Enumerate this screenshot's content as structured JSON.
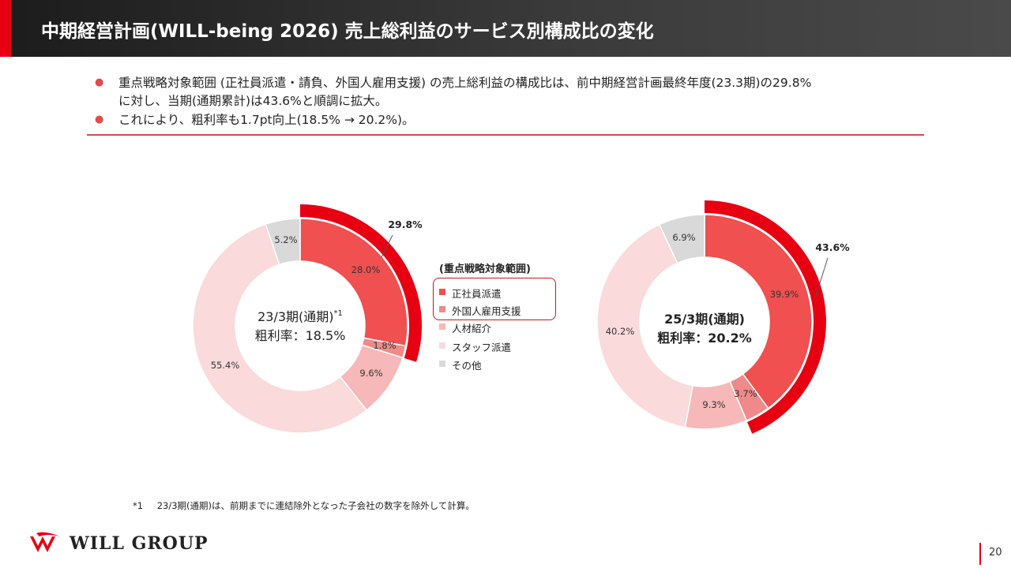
{
  "header": {
    "title": "中期経営計画(WILL-being 2026) 売上総利益のサービス別構成比の変化"
  },
  "bullets": [
    {
      "line1": "重点戦略対象範囲 (正社員派遣・請負、外国人雇用支援) の売上総利益の構成比は、前中期経営計画最終年度(23.3期)の29.8%",
      "line2": "に対し、当期(通期累計)は43.6%と順調に拡大。"
    },
    {
      "line1": "これにより、粗利率も1.7pt向上(18.5% → 20.2%)。"
    }
  ],
  "legend": {
    "title": "(重点戦略対象範囲)",
    "items": [
      {
        "label": "正社員派遣",
        "color": "#f05050"
      },
      {
        "label": "外国人雇用支援",
        "color": "#f08a8a"
      },
      {
        "label": "人材紹介",
        "color": "#f6b8b8"
      },
      {
        "label": "スタッフ派遣",
        "color": "#fadada"
      },
      {
        "label": "その他",
        "color": "#d9d9d9"
      }
    ]
  },
  "chart_data": [
    {
      "type": "pie",
      "donut": true,
      "center_label_line1": "23/3期(通期)",
      "center_label_sup": "*1",
      "center_label_line2": "粗利率：18.5%",
      "slices": [
        {
          "name": "正社員派遣",
          "value": 28.0,
          "label": "28.0%",
          "color": "#f05050"
        },
        {
          "name": "外国人雇用支援",
          "value": 1.8,
          "label": "1.8%",
          "color": "#f08a8a"
        },
        {
          "name": "人材紹介",
          "value": 9.6,
          "label": "9.6%",
          "color": "#f6b8b8"
        },
        {
          "name": "スタッフ派遣",
          "value": 55.4,
          "label": "55.4%",
          "color": "#fadada"
        },
        {
          "name": "その他",
          "value": 5.2,
          "label": "5.2%",
          "color": "#d9d9d9"
        }
      ],
      "highlight": {
        "value": 29.8,
        "label": "29.8%",
        "color": "#e60012"
      }
    },
    {
      "type": "pie",
      "donut": true,
      "center_label_line1": "25/3期(通期)",
      "center_label_line2": "粗利率：20.2%",
      "slices": [
        {
          "name": "正社員派遣",
          "value": 39.9,
          "label": "39.9%",
          "color": "#f05050"
        },
        {
          "name": "外国人雇用支援",
          "value": 3.7,
          "label": "3.7%",
          "color": "#f08a8a"
        },
        {
          "name": "人材紹介",
          "value": 9.3,
          "label": "9.3%",
          "color": "#f6b8b8"
        },
        {
          "name": "スタッフ派遣",
          "value": 40.2,
          "label": "40.2%",
          "color": "#fadada"
        },
        {
          "name": "その他",
          "value": 6.9,
          "label": "6.9%",
          "color": "#d9d9d9"
        }
      ],
      "highlight": {
        "value": 43.6,
        "label": "43.6%",
        "color": "#e60012"
      }
    }
  ],
  "footnote": {
    "mark": "*1",
    "text": "23/3期(通期)は、前期までに連結除外となった子会社の数字を除外して計算。"
  },
  "logo": {
    "text": "WILL GROUP",
    "icon": "will-group-logo-icon",
    "color": "#e60012"
  },
  "page_number": "20"
}
